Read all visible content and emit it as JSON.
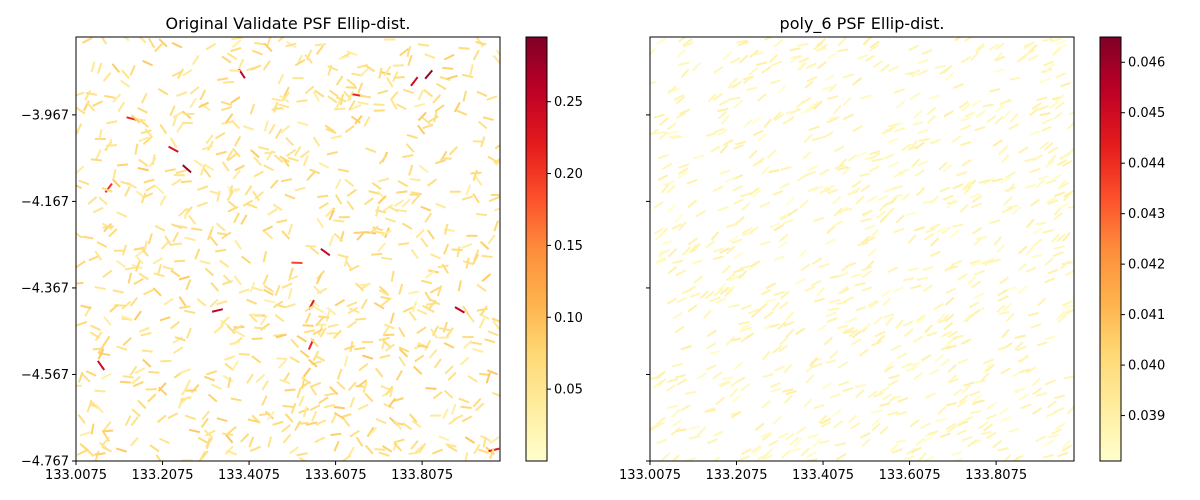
{
  "chart_data": [
    {
      "type": "quiver",
      "title": "Original Validate PSF Ellip-dist.",
      "xlabel": "",
      "ylabel": "",
      "xlim": [
        133.0075,
        133.9875
      ],
      "ylim": [
        -4.767,
        -3.787
      ],
      "xticks": [
        133.0075,
        133.2075,
        133.4075,
        133.6075,
        133.8075
      ],
      "xtick_labels": [
        "133.0075",
        "133.2075",
        "133.4075",
        "133.6075",
        "133.8075"
      ],
      "yticks": [
        -3.967,
        -4.167,
        -4.367,
        -4.567,
        -4.767
      ],
      "ytick_labels": [
        "−3.967",
        "−4.167",
        "−4.367",
        "−4.567",
        "−4.767"
      ],
      "colormap": "YlOrRd",
      "colorbar": {
        "min": 0.0,
        "max": 0.295,
        "ticks": [
          0.05,
          0.1,
          0.15,
          0.2,
          0.25
        ],
        "tick_labels": [
          "0.05",
          "0.10",
          "0.15",
          "0.20",
          "0.25"
        ]
      },
      "field": {
        "count": 900,
        "angle_mean_deg": 10,
        "angle_spread_deg": 70,
        "value_typical": 0.06,
        "value_spread": 0.035,
        "seed": 7
      }
    },
    {
      "type": "quiver",
      "title": "poly_6 PSF Ellip-dist.",
      "xlabel": "",
      "ylabel": "",
      "xlim": [
        133.0075,
        133.9875
      ],
      "ylim": [
        -4.767,
        -3.787
      ],
      "xticks": [
        133.0075,
        133.2075,
        133.4075,
        133.6075,
        133.8075
      ],
      "xtick_labels": [
        "133.0075",
        "133.2075",
        "133.4075",
        "133.6075",
        "133.8075"
      ],
      "yticks": [
        -3.967,
        -4.167,
        -4.367,
        -4.567,
        -4.767
      ],
      "ytick_labels": [],
      "colormap": "YlOrRd",
      "colorbar": {
        "min": 0.0381,
        "max": 0.0465,
        "ticks": [
          0.039,
          0.04,
          0.041,
          0.042,
          0.043,
          0.044,
          0.045,
          0.046
        ],
        "tick_labels": [
          "0.039",
          "0.040",
          "0.041",
          "0.042",
          "0.043",
          "0.044",
          "0.045",
          "0.046"
        ]
      },
      "field": {
        "count": 900,
        "angle_mean_deg": 30,
        "angle_spread_deg": 20,
        "value_typical": 0.0386,
        "value_spread": 0.0006,
        "seed": 13
      }
    }
  ]
}
